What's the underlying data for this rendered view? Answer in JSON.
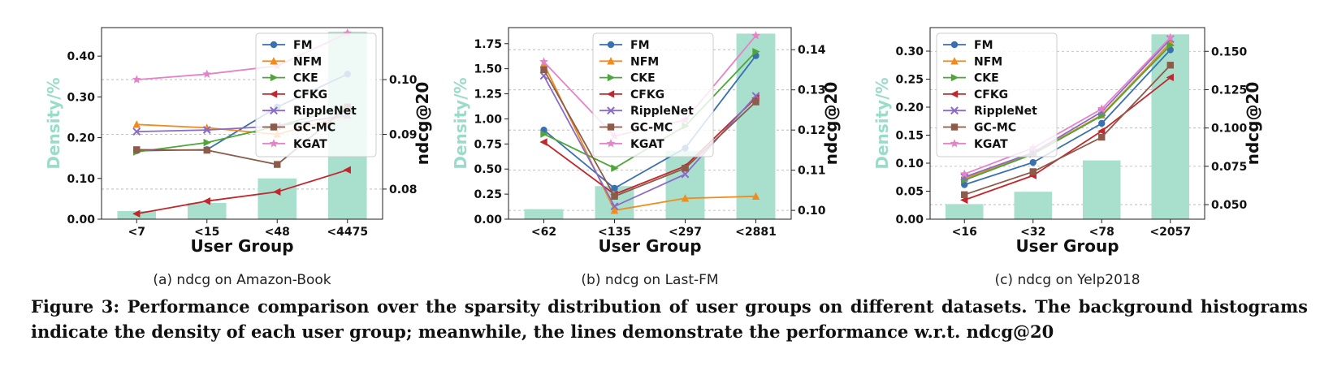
{
  "figure": {
    "caption_label": "Figure 3:",
    "caption_text": "Performance comparison over the sparsity distribution of user groups on different datasets. The background histograms indicate the density of each user group; meanwhile, the lines demonstrate the performance w.r.t. ndcg@20"
  },
  "colors": {
    "FM": "#3a6fb0",
    "NFM": "#f08c1e",
    "CKE": "#4ea63a",
    "CFKG": "#c0282d",
    "RippleNet": "#8a6cc8",
    "GC-MC": "#8c5b4a",
    "KGAT": "#e383c8",
    "bars": "#a8dfcd"
  },
  "chart_data": [
    {
      "type": "bar+line",
      "subcaption": "(a) ndcg on Amazon-Book",
      "xlabel": "User Group",
      "ylabel_left": "Density/%",
      "ylabel_right": "ndcg@20",
      "categories": [
        "<7",
        "<15",
        "<48",
        "<4475"
      ],
      "bars": [
        0.02,
        0.04,
        0.1,
        0.46
      ],
      "ylim_left": [
        0,
        0.47
      ],
      "yticks_left": [
        "0.00",
        "0.10",
        "0.20",
        "0.30",
        "0.40"
      ],
      "ylim_right": [
        0.0745,
        0.1095
      ],
      "yticks_right": [
        "0.08",
        "0.09",
        "0.10"
      ],
      "legend_position": "top-right",
      "series": [
        {
          "name": "FM",
          "values": [
            0.087,
            0.0872,
            0.095,
            0.101
          ]
        },
        {
          "name": "NFM",
          "values": [
            0.0918,
            0.0912,
            0.09,
            0.0935
          ]
        },
        {
          "name": "CKE",
          "values": [
            0.0868,
            0.0885,
            0.0915,
            0.095
          ]
        },
        {
          "name": "CFKG",
          "values": [
            0.0755,
            0.0778,
            0.0795,
            0.0835
          ]
        },
        {
          "name": "RippleNet",
          "values": [
            0.0905,
            0.0908,
            0.0915,
            0.0935
          ]
        },
        {
          "name": "GC-MC",
          "values": [
            0.0872,
            0.0871,
            0.0845,
            0.095
          ]
        },
        {
          "name": "KGAT",
          "values": [
            0.1,
            0.101,
            0.1025,
            0.1085
          ]
        }
      ]
    },
    {
      "type": "bar+line",
      "subcaption": "(b) ndcg on Last-FM",
      "xlabel": "User Group",
      "ylabel_left": "Density/%",
      "ylabel_right": "ndcg@20",
      "categories": [
        "<62",
        "<135",
        "<297",
        "<2881"
      ],
      "bars": [
        0.1,
        0.33,
        0.68,
        1.85
      ],
      "ylim_left": [
        0,
        1.91
      ],
      "yticks_left": [
        "0.00",
        "0.25",
        "0.50",
        "0.75",
        "1.00",
        "1.25",
        "1.50",
        "1.75"
      ],
      "ylim_right": [
        0.0978,
        0.1455
      ],
      "yticks_right": [
        "0.10",
        "0.11",
        "0.12",
        "0.13",
        "0.14"
      ],
      "legend_position": "top-center",
      "series": [
        {
          "name": "FM",
          "values": [
            0.12,
            0.1055,
            0.1155,
            0.1385
          ]
        },
        {
          "name": "NFM",
          "values": [
            0.1365,
            0.1,
            0.103,
            0.1035
          ]
        },
        {
          "name": "CKE",
          "values": [
            0.119,
            0.1105,
            0.121,
            0.1395
          ]
        },
        {
          "name": "CFKG",
          "values": [
            0.117,
            0.104,
            0.111,
            0.128
          ]
        },
        {
          "name": "RippleNet",
          "values": [
            0.1335,
            0.101,
            0.109,
            0.1285
          ]
        },
        {
          "name": "GC-MC",
          "values": [
            0.135,
            0.1035,
            0.1105,
            0.127
          ]
        },
        {
          "name": "KGAT",
          "values": [
            0.137,
            0.1185,
            0.1225,
            0.1435
          ]
        }
      ]
    },
    {
      "type": "bar+line",
      "subcaption": "(c) ndcg on Yelp2018",
      "xlabel": "User Group",
      "ylabel_left": "Density/%",
      "ylabel_right": "ndcg@20",
      "categories": [
        "<16",
        "<32",
        "<78",
        "<2057"
      ],
      "bars": [
        0.027,
        0.049,
        0.105,
        0.33
      ],
      "ylim_left": [
        0,
        0.342
      ],
      "yticks_left": [
        "0.00",
        "0.05",
        "0.10",
        "0.15",
        "0.20",
        "0.25",
        "0.30"
      ],
      "ylim_right": [
        0.0405,
        0.1655
      ],
      "yticks_right": [
        "0.050",
        "0.075",
        "0.100",
        "0.125",
        "0.150"
      ],
      "legend_position": "top-left",
      "series": [
        {
          "name": "FM",
          "values": [
            0.063,
            0.0775,
            0.103,
            0.151
          ]
        },
        {
          "name": "NFM",
          "values": [
            0.067,
            0.0835,
            0.1085,
            0.1555
          ]
        },
        {
          "name": "CKE",
          "values": [
            0.066,
            0.083,
            0.108,
            0.154
          ]
        },
        {
          "name": "CFKG",
          "values": [
            0.053,
            0.069,
            0.098,
            0.133
          ]
        },
        {
          "name": "RippleNet",
          "values": [
            0.068,
            0.084,
            0.1105,
            0.158
          ]
        },
        {
          "name": "GC-MC",
          "values": [
            0.0565,
            0.0715,
            0.094,
            0.141
          ]
        },
        {
          "name": "KGAT",
          "values": [
            0.07,
            0.087,
            0.1125,
            0.159
          ]
        }
      ]
    }
  ]
}
